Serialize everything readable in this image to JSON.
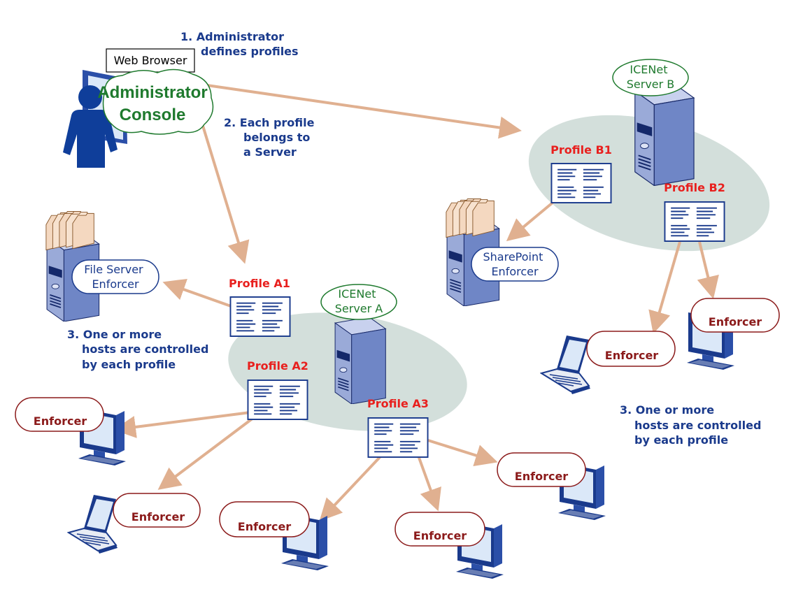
{
  "notes": {
    "admin_line1": "1. Administrator",
    "admin_line2": "defines profiles",
    "belongs_line1": "2. Each profile",
    "belongs_line2": "belongs to",
    "belongs_line3": "a Server",
    "hosts_left_line1": "3. One or more",
    "hosts_left_line2": "hosts are controlled",
    "hosts_left_line3": "by each profile",
    "hosts_right_line1": "3. One or more",
    "hosts_right_line2": "hosts are controlled",
    "hosts_right_line3": "by each profile"
  },
  "admin": {
    "browser_label": "Web Browser",
    "console_line1": "Administrator",
    "console_line2": "Console"
  },
  "servers": {
    "a_line1": "ICENet",
    "a_line2": "Server A",
    "b_line1": "ICENet",
    "b_line2": "Server B"
  },
  "profiles": {
    "a1": "Profile A1",
    "a2": "Profile A2",
    "a3": "Profile A3",
    "b1": "Profile B1",
    "b2": "Profile B2"
  },
  "hosts": {
    "file_server_line1": "File Server",
    "file_server_line2": "Enforcer",
    "sharepoint_line1": "SharePoint",
    "sharepoint_line2": "Enforcer"
  },
  "enforcers": [
    "Enforcer",
    "Enforcer",
    "Enforcer",
    "Enforcer",
    "Enforcer",
    "Enforcer",
    "Enforcer"
  ],
  "colors": {
    "arrow": "#e0b090",
    "ellipse": "#d3dfdb",
    "person": "#0f3e9a",
    "server_front": "#9aaad8",
    "server_side": "#6f86c6",
    "profile_border": "#1a3a8c",
    "enforcer_text": "#8b1a1a",
    "profile_text": "#e8201e"
  }
}
